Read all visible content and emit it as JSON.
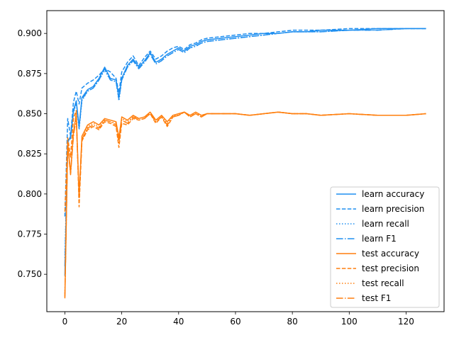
{
  "chart_data": {
    "type": "line",
    "title": "",
    "xlabel": "",
    "ylabel": "",
    "xlim": [
      -6.35,
      133.35
    ],
    "ylim": [
      0.7267,
      0.9142
    ],
    "xticks": [
      0,
      20,
      40,
      60,
      80,
      100,
      120
    ],
    "yticks": [
      0.75,
      0.775,
      0.8,
      0.825,
      0.85,
      0.875,
      0.9
    ],
    "ytick_format": 3,
    "grid": false,
    "legend_position": "lower-right",
    "colors": {
      "learn": "#1f8ff0",
      "test": "#ff7f0e"
    },
    "x_points": [
      0,
      1,
      2,
      3,
      4,
      5,
      6,
      8,
      10,
      12,
      14,
      16,
      18,
      19,
      20,
      22,
      24,
      26,
      28,
      30,
      32,
      34,
      36,
      38,
      40,
      42,
      44,
      46,
      48,
      50,
      55,
      60,
      65,
      70,
      75,
      80,
      85,
      90,
      100,
      110,
      120,
      127
    ],
    "series": [
      {
        "name": "learn accuracy",
        "group": "learn",
        "dash": "solid",
        "values": [
          0.749,
          0.832,
          0.836,
          0.852,
          0.858,
          0.842,
          0.86,
          0.865,
          0.867,
          0.872,
          0.879,
          0.872,
          0.871,
          0.86,
          0.872,
          0.88,
          0.884,
          0.879,
          0.883,
          0.888,
          0.882,
          0.884,
          0.887,
          0.889,
          0.891,
          0.889,
          0.892,
          0.893,
          0.895,
          0.896,
          0.897,
          0.898,
          0.899,
          0.9,
          0.9,
          0.901,
          0.901,
          0.902,
          0.902,
          0.903,
          0.903,
          0.903
        ]
      },
      {
        "name": "learn precision",
        "group": "learn",
        "dash": "dashed",
        "values": [
          0.786,
          0.847,
          0.836,
          0.857,
          0.864,
          0.856,
          0.866,
          0.869,
          0.871,
          0.874,
          0.878,
          0.876,
          0.872,
          0.863,
          0.876,
          0.882,
          0.886,
          0.88,
          0.885,
          0.889,
          0.884,
          0.886,
          0.889,
          0.891,
          0.892,
          0.89,
          0.893,
          0.894,
          0.896,
          0.897,
          0.898,
          0.899,
          0.9,
          0.9,
          0.901,
          0.902,
          0.902,
          0.902,
          0.903,
          0.903,
          0.903,
          0.903
        ]
      },
      {
        "name": "learn recall",
        "group": "learn",
        "dash": "dotted",
        "values": [
          0.76,
          0.834,
          0.834,
          0.85,
          0.857,
          0.84,
          0.858,
          0.864,
          0.866,
          0.871,
          0.877,
          0.871,
          0.87,
          0.858,
          0.871,
          0.879,
          0.883,
          0.878,
          0.882,
          0.887,
          0.881,
          0.883,
          0.886,
          0.888,
          0.89,
          0.888,
          0.891,
          0.892,
          0.894,
          0.895,
          0.896,
          0.897,
          0.898,
          0.899,
          0.9,
          0.901,
          0.901,
          0.901,
          0.902,
          0.902,
          0.903,
          0.903
        ]
      },
      {
        "name": "learn F1",
        "group": "learn",
        "dash": "dashdot",
        "values": [
          0.755,
          0.833,
          0.835,
          0.851,
          0.858,
          0.841,
          0.859,
          0.864,
          0.866,
          0.871,
          0.878,
          0.871,
          0.87,
          0.859,
          0.871,
          0.879,
          0.883,
          0.878,
          0.882,
          0.887,
          0.881,
          0.883,
          0.886,
          0.888,
          0.89,
          0.888,
          0.891,
          0.892,
          0.894,
          0.895,
          0.896,
          0.897,
          0.898,
          0.899,
          0.9,
          0.901,
          0.901,
          0.901,
          0.902,
          0.902,
          0.903,
          0.903
        ]
      },
      {
        "name": "test accuracy",
        "group": "test",
        "dash": "solid",
        "values": [
          0.735,
          0.832,
          0.813,
          0.838,
          0.85,
          0.799,
          0.836,
          0.843,
          0.845,
          0.843,
          0.847,
          0.846,
          0.845,
          0.835,
          0.848,
          0.846,
          0.849,
          0.847,
          0.848,
          0.851,
          0.846,
          0.849,
          0.845,
          0.849,
          0.85,
          0.851,
          0.849,
          0.851,
          0.849,
          0.85,
          0.85,
          0.85,
          0.849,
          0.85,
          0.851,
          0.85,
          0.85,
          0.849,
          0.85,
          0.849,
          0.849,
          0.85
        ]
      },
      {
        "name": "test precision",
        "group": "test",
        "dash": "dashed",
        "values": [
          0.789,
          0.835,
          0.823,
          0.847,
          0.852,
          0.792,
          0.833,
          0.84,
          0.842,
          0.84,
          0.845,
          0.844,
          0.842,
          0.829,
          0.844,
          0.843,
          0.847,
          0.846,
          0.847,
          0.85,
          0.844,
          0.848,
          0.842,
          0.848,
          0.849,
          0.851,
          0.848,
          0.85,
          0.848,
          0.85,
          0.85,
          0.85,
          0.849,
          0.85,
          0.851,
          0.85,
          0.85,
          0.849,
          0.85,
          0.849,
          0.849,
          0.85
        ]
      },
      {
        "name": "test recall",
        "group": "test",
        "dash": "dotted",
        "values": [
          0.738,
          0.83,
          0.813,
          0.836,
          0.848,
          0.798,
          0.834,
          0.842,
          0.844,
          0.842,
          0.846,
          0.845,
          0.844,
          0.834,
          0.847,
          0.845,
          0.848,
          0.847,
          0.848,
          0.85,
          0.845,
          0.848,
          0.844,
          0.849,
          0.849,
          0.851,
          0.849,
          0.85,
          0.849,
          0.85,
          0.85,
          0.85,
          0.849,
          0.85,
          0.851,
          0.85,
          0.85,
          0.849,
          0.85,
          0.849,
          0.849,
          0.85
        ]
      },
      {
        "name": "test F1",
        "group": "test",
        "dash": "dashdot",
        "values": [
          0.736,
          0.831,
          0.812,
          0.836,
          0.848,
          0.797,
          0.834,
          0.841,
          0.843,
          0.841,
          0.846,
          0.845,
          0.843,
          0.832,
          0.846,
          0.844,
          0.848,
          0.846,
          0.847,
          0.85,
          0.845,
          0.848,
          0.843,
          0.848,
          0.849,
          0.851,
          0.848,
          0.85,
          0.848,
          0.85,
          0.85,
          0.85,
          0.849,
          0.85,
          0.851,
          0.85,
          0.85,
          0.849,
          0.85,
          0.849,
          0.849,
          0.85
        ]
      }
    ]
  }
}
